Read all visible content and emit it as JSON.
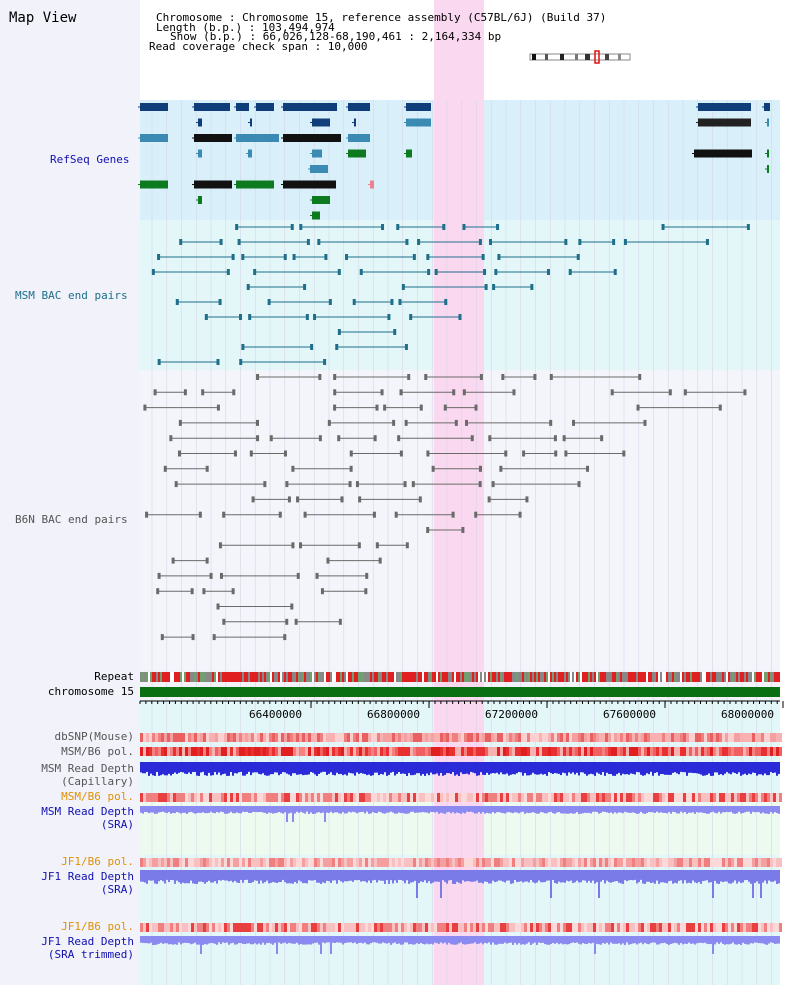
{
  "header": {
    "title": "Map View",
    "chromosome_line": "Chromosome    : Chromosome 15, reference assembly (C57BL/6J) (Build 37)",
    "length_line": "Length (b.p.) : 103,494,974",
    "show_line": "Show (b.p.) : 66,026,128-68,190,461 : 2,164,334 bp",
    "coverage_line": "Read coverage check span : 10,000"
  },
  "tracks": {
    "refseq": "RefSeq Genes",
    "msm_bac": "MSM BAC end pairs",
    "b6n_bac": "B6N BAC end pairs",
    "repeat": "Repeat",
    "chromosome": "chromosome 15",
    "dbsnp": "dbSNP(Mouse)",
    "msm_b6_pol": "MSM/B6 pol.",
    "msm_read_depth_cap_1": "MSM Read Depth",
    "msm_read_depth_cap_2": "(Capillary)",
    "msm_b6_pol_sra": "MSM/B6 pol.",
    "msm_read_depth_sra_1": "MSM Read Depth",
    "msm_read_depth_sra_2": "(SRA)",
    "jf1_b6_pol": "JF1/B6 pol.",
    "jf1_read_depth_1": "JF1 Read Depth",
    "jf1_read_depth_2": "(SRA)",
    "jf1_b6_pol_trim": "JF1/B6 pol.",
    "jf1_read_depth_trim_1": "JF1 Read Depth",
    "jf1_read_depth_trim_2": "(SRA trimmed)"
  },
  "axis": {
    "ticks": [
      "66400000",
      "66800000",
      "67200000",
      "67600000",
      "68000000"
    ]
  },
  "colors": {
    "refseq_bg": "#d9f0fa",
    "msm_bg": "#e3f7f9",
    "highlight": "#fad9f0",
    "gene_dark": "#0f3e7a",
    "gene_mid": "#3a8ab4",
    "gene_green": "#0d7a1f",
    "msm_line": "#1f6e8a",
    "b6n_line": "#6a6a6a",
    "chrom_bar": "#0a6e12",
    "depth_blue": "#2a2ad8",
    "depth_light": "#7a7ae8",
    "label_blue": "#1010b0",
    "label_orange": "#e09000"
  }
}
